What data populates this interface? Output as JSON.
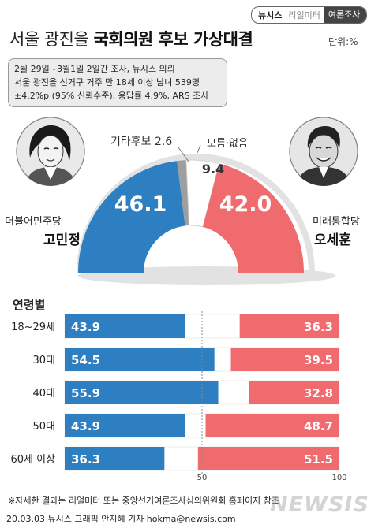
{
  "header": {
    "brand_left": "뉴시스",
    "brand_mid": "리얼미터",
    "brand_right": "여론조사",
    "title_plain": "서울 광진을 ",
    "title_bold": "국회의원 후보 가상대결",
    "unit": "단위:%"
  },
  "survey_info": [
    "2월 29일~3월1일 2일간 조사, 뉴시스 의뢰",
    "서울 광진을 선거구 거주 만 18세 이상 남녀 539명",
    "±4.2%p (95% 신뢰수준), 응답률 4.9%, ARS 조사"
  ],
  "candidates": {
    "left": {
      "party": "더불어민주당",
      "name": "고민정",
      "color": "#2e7fc1"
    },
    "right": {
      "party": "미래통합당",
      "name": "오세훈",
      "color": "#ef6b6e"
    }
  },
  "colors": {
    "other": "#9e9e9e",
    "undecided": "#ffffff",
    "shadow": "#e2e2e2"
  },
  "chart_data": [
    {
      "type": "pie",
      "subtype": "half-donut",
      "categories": [
        "고민정",
        "기타후보",
        "모름·없음",
        "오세훈"
      ],
      "values": [
        46.1,
        2.6,
        9.4,
        42.0
      ],
      "labels": [
        "46.1",
        "기타후보 2.6",
        "모름·없음 9.4",
        "42.0"
      ]
    },
    {
      "type": "bar",
      "subtype": "stacked-horizontal",
      "title": "연령별",
      "categories": [
        "18~29세",
        "30대",
        "40대",
        "50대",
        "60세 이상"
      ],
      "series": [
        {
          "name": "고민정",
          "values": [
            43.9,
            54.5,
            55.9,
            43.9,
            36.3
          ]
        },
        {
          "name": "오세훈",
          "values": [
            36.3,
            39.5,
            32.8,
            48.7,
            51.5
          ]
        }
      ],
      "xlim": [
        0,
        100
      ],
      "xticks": [
        "50",
        "100"
      ]
    }
  ],
  "footnote": "※자세한 결과는 리얼미터 또는 중앙선거여론조사심의위원회 홈페이지 참조",
  "credit": "20.03.03 뉴시스 그래픽 안지혜 기자 hokma@newsis.com",
  "watermark": "NEWSIS"
}
